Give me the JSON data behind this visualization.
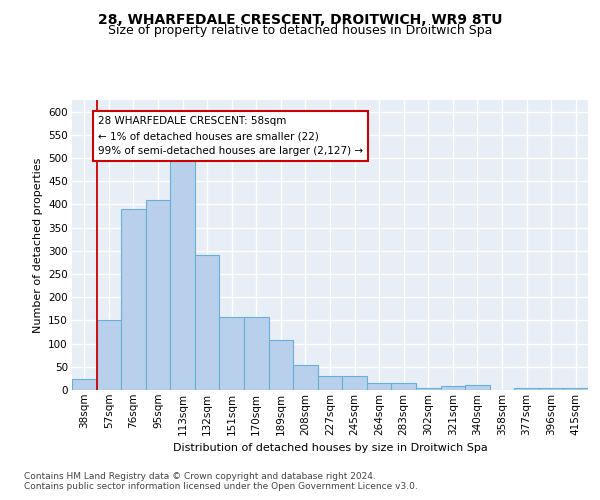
{
  "title1": "28, WHARFEDALE CRESCENT, DROITWICH, WR9 8TU",
  "title2": "Size of property relative to detached houses in Droitwich Spa",
  "xlabel": "Distribution of detached houses by size in Droitwich Spa",
  "ylabel": "Number of detached properties",
  "categories": [
    "38sqm",
    "57sqm",
    "76sqm",
    "95sqm",
    "113sqm",
    "132sqm",
    "151sqm",
    "170sqm",
    "189sqm",
    "208sqm",
    "227sqm",
    "245sqm",
    "264sqm",
    "283sqm",
    "302sqm",
    "321sqm",
    "340sqm",
    "358sqm",
    "377sqm",
    "396sqm",
    "415sqm"
  ],
  "values": [
    23,
    150,
    390,
    410,
    500,
    290,
    158,
    158,
    108,
    53,
    30,
    30,
    16,
    16,
    5,
    8,
    10,
    0,
    5,
    5,
    5
  ],
  "bar_color": "#b8d0eb",
  "bar_edge_color": "#6baed6",
  "highlight_color": "#cc0000",
  "annotation_line1": "28 WHARFEDALE CRESCENT: 58sqm",
  "annotation_line2": "← 1% of detached houses are smaller (22)",
  "annotation_line3": "99% of semi-detached houses are larger (2,127) →",
  "ylim_max": 625,
  "yticks": [
    0,
    50,
    100,
    150,
    200,
    250,
    300,
    350,
    400,
    450,
    500,
    550,
    600
  ],
  "footer1": "Contains HM Land Registry data © Crown copyright and database right 2024.",
  "footer2": "Contains public sector information licensed under the Open Government Licence v3.0.",
  "plot_bg_color": "#e8eef5",
  "fig_bg_color": "#ffffff",
  "title1_fontsize": 10,
  "title2_fontsize": 9,
  "axis_label_fontsize": 8,
  "tick_fontsize": 7.5,
  "footer_fontsize": 6.5,
  "annot_fontsize": 7.5
}
